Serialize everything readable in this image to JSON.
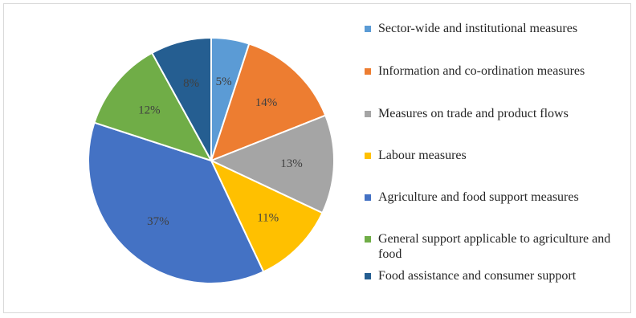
{
  "chart_data": {
    "type": "pie",
    "title": "",
    "legend_position": "right",
    "slices": [
      {
        "label": "Sector-wide and institutional measures",
        "value": 5,
        "display": "5%",
        "color": "#5B9BD5"
      },
      {
        "label": "Information and co-ordination measures",
        "value": 14,
        "display": "14%",
        "color": "#ED7D31"
      },
      {
        "label": "Measures on trade and product flows",
        "value": 13,
        "display": "13%",
        "color": "#A5A5A5"
      },
      {
        "label": "Labour measures",
        "value": 11,
        "display": "11%",
        "color": "#FFC000"
      },
      {
        "label": "Agriculture and food support measures",
        "value": 37,
        "display": "37%",
        "color": "#4472C4"
      },
      {
        "label": "General support applicable to agriculture and food",
        "value": 12,
        "display": "12%",
        "color": "#70AD47"
      },
      {
        "label": "Food assistance and consumer support",
        "value": 8,
        "display": "8%",
        "color": "#255E91"
      }
    ]
  }
}
